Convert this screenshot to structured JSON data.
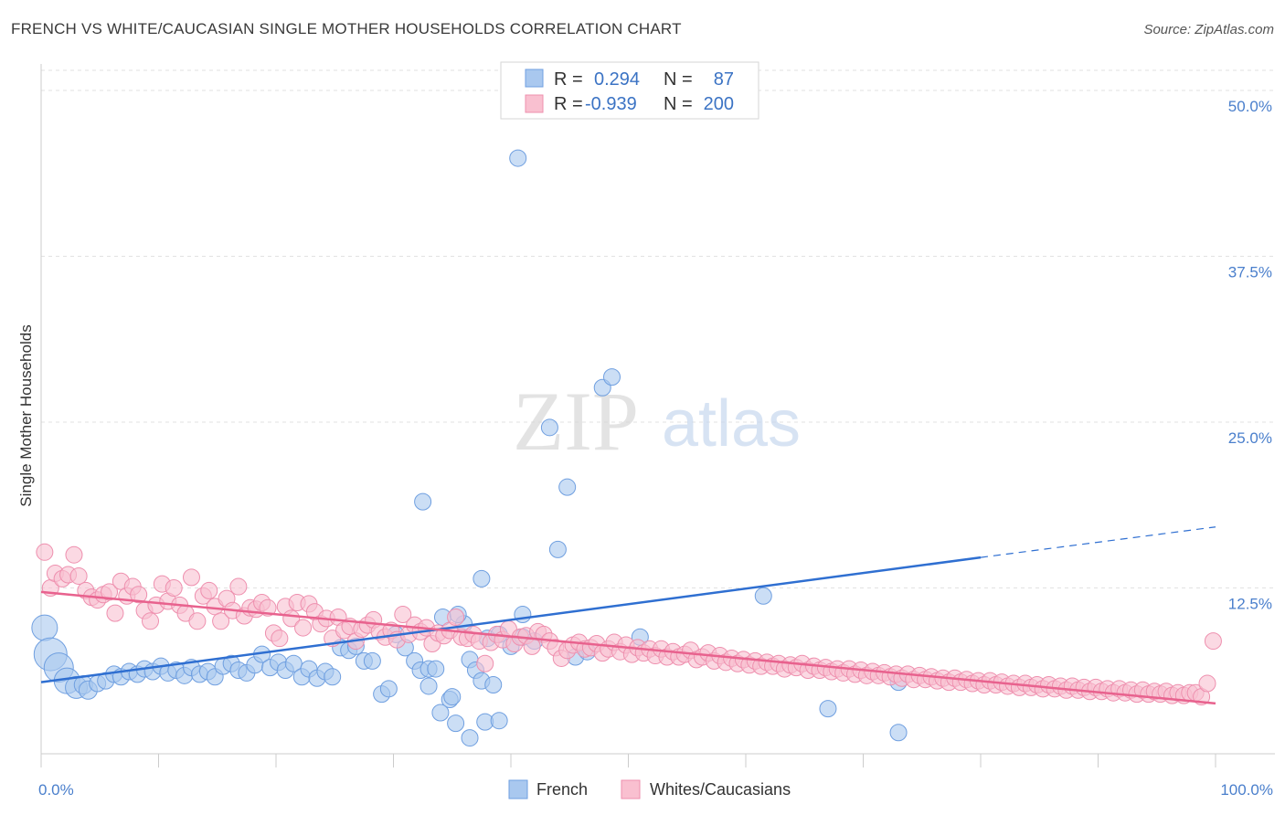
{
  "title": "FRENCH VS WHITE/CAUCASIAN SINGLE MOTHER HOUSEHOLDS CORRELATION CHART",
  "source": "Source: ZipAtlas.com",
  "watermark": {
    "zip": "ZIP",
    "atlas": "atlas"
  },
  "legend": {
    "r_label": "R =",
    "n_label": "N =",
    "rows": [
      {
        "r": "0.294",
        "n": "87",
        "color": "#a9c8ef",
        "stroke": "#6f9fe0"
      },
      {
        "r": "-0.939",
        "n": "200",
        "color": "#f9c0d0",
        "stroke": "#ee8fae"
      }
    ]
  },
  "chart_data": {
    "type": "scatter",
    "title": "FRENCH VS WHITE/CAUCASIAN SINGLE MOTHER HOUSEHOLDS CORRELATION CHART",
    "ylabel": "Single Mother Households",
    "xlabel": "",
    "xlim": [
      0,
      100
    ],
    "ylim": [
      0,
      52
    ],
    "x_tick_labels": [
      "0.0%",
      "100.0%"
    ],
    "y_ticks": [
      12.5,
      25.0,
      37.5,
      50.0
    ],
    "y_tick_labels": [
      "12.5%",
      "25.0%",
      "37.5%",
      "50.0%"
    ],
    "grid": true,
    "legend_placement": "top-center",
    "series": [
      {
        "name": "French",
        "color": "#a9c8ef",
        "stroke": "#6f9fe0",
        "line_color": "#2f6fd1",
        "trend": {
          "x0": 0,
          "y0": 5.4,
          "x1": 80,
          "y1": 14.8,
          "dash_x1": 100,
          "dash_y1": 17.1
        },
        "points": [
          [
            0.3,
            9.5,
            14
          ],
          [
            0.8,
            7.5,
            18
          ],
          [
            1.5,
            6.5,
            16
          ],
          [
            2.2,
            5.5,
            14
          ],
          [
            3.0,
            5.0,
            12
          ],
          [
            3.6,
            5.2,
            10
          ],
          [
            4.0,
            4.8,
            10
          ],
          [
            4.8,
            5.3,
            9
          ],
          [
            5.5,
            5.5,
            9
          ],
          [
            6.2,
            6.0,
            9
          ],
          [
            6.8,
            5.8,
            9
          ],
          [
            7.5,
            6.2,
            9
          ],
          [
            8.2,
            6.0,
            9
          ],
          [
            8.8,
            6.4,
            9
          ],
          [
            9.5,
            6.2,
            9
          ],
          [
            10.2,
            6.6,
            9
          ],
          [
            10.8,
            6.1,
            9
          ],
          [
            11.5,
            6.3,
            9
          ],
          [
            12.2,
            5.9,
            9
          ],
          [
            12.8,
            6.5,
            9
          ],
          [
            13.5,
            6.0,
            9
          ],
          [
            14.2,
            6.2,
            9
          ],
          [
            14.8,
            5.8,
            9
          ],
          [
            15.5,
            6.6,
            9
          ],
          [
            16.2,
            6.8,
            9
          ],
          [
            16.8,
            6.3,
            9
          ],
          [
            17.5,
            6.1,
            9
          ],
          [
            18.2,
            6.7,
            9
          ],
          [
            18.8,
            7.5,
            9
          ],
          [
            19.5,
            6.5,
            9
          ],
          [
            20.2,
            6.9,
            9
          ],
          [
            20.8,
            6.3,
            9
          ],
          [
            21.5,
            6.8,
            9
          ],
          [
            22.2,
            5.8,
            9
          ],
          [
            22.8,
            6.4,
            9
          ],
          [
            23.5,
            5.7,
            9
          ],
          [
            24.2,
            6.2,
            9
          ],
          [
            24.8,
            5.8,
            9
          ],
          [
            25.5,
            8.0,
            9
          ],
          [
            26.2,
            7.8,
            9
          ],
          [
            26.8,
            8.1,
            9
          ],
          [
            27.5,
            7.0,
            9
          ],
          [
            28.2,
            7.0,
            9
          ],
          [
            29.0,
            4.5,
            9
          ],
          [
            29.6,
            4.9,
            9
          ],
          [
            30.2,
            9.0,
            9
          ],
          [
            31.0,
            8.0,
            9
          ],
          [
            31.8,
            7.0,
            9
          ],
          [
            32.3,
            6.3,
            9
          ],
          [
            33.0,
            6.4,
            9
          ],
          [
            33.6,
            6.4,
            9
          ],
          [
            34.2,
            10.3,
            9
          ],
          [
            34.8,
            4.1,
            9
          ],
          [
            35.3,
            2.3,
            9
          ],
          [
            36.0,
            9.8,
            9
          ],
          [
            36.5,
            7.1,
            9
          ],
          [
            37.0,
            6.3,
            9
          ],
          [
            37.5,
            13.2,
            9
          ],
          [
            38.0,
            8.7,
            9
          ],
          [
            39.0,
            9.0,
            9
          ],
          [
            40.0,
            8.1,
            9
          ],
          [
            41.0,
            8.8,
            9
          ],
          [
            42.0,
            8.5,
            9
          ],
          [
            32.5,
            19.0,
            9
          ],
          [
            33.0,
            5.1,
            9
          ],
          [
            34.0,
            3.1,
            9
          ],
          [
            35.0,
            4.3,
            9
          ],
          [
            36.5,
            1.2,
            9
          ],
          [
            37.8,
            2.4,
            9
          ],
          [
            35.5,
            10.5,
            9
          ],
          [
            37.5,
            5.5,
            9
          ],
          [
            38.5,
            5.2,
            9
          ],
          [
            39.0,
            2.5,
            9
          ],
          [
            41.0,
            10.5,
            9
          ],
          [
            43.3,
            24.6,
            9
          ],
          [
            44.0,
            15.4,
            9
          ],
          [
            44.8,
            20.1,
            9
          ],
          [
            40.6,
            44.9,
            9
          ],
          [
            45.5,
            7.3,
            9
          ],
          [
            46.5,
            7.7,
            9
          ],
          [
            47.8,
            27.6,
            9
          ],
          [
            48.6,
            28.4,
            9
          ],
          [
            51.0,
            8.8,
            9
          ],
          [
            61.5,
            11.9,
            9
          ],
          [
            67.0,
            3.4,
            9
          ],
          [
            73.0,
            5.4,
            9
          ],
          [
            73.0,
            1.6,
            9
          ]
        ]
      },
      {
        "name": "Whites/Caucasians",
        "color": "#f9c0d0",
        "stroke": "#ee8fae",
        "line_color": "#e8628e",
        "trend": {
          "x0": 0,
          "y0": 12.2,
          "x1": 100,
          "y1": 3.8
        },
        "points": [
          [
            0.3,
            15.2
          ],
          [
            0.8,
            12.5
          ],
          [
            1.2,
            13.6
          ],
          [
            1.8,
            13.2
          ],
          [
            2.3,
            13.5
          ],
          [
            2.8,
            15.0
          ],
          [
            3.2,
            13.4
          ],
          [
            3.8,
            12.3
          ],
          [
            4.3,
            11.8
          ],
          [
            4.8,
            11.6
          ],
          [
            5.3,
            12.0
          ],
          [
            5.8,
            12.2
          ],
          [
            6.3,
            10.6
          ],
          [
            6.8,
            13.0
          ],
          [
            7.3,
            11.9
          ],
          [
            7.8,
            12.6
          ],
          [
            8.3,
            12.0
          ],
          [
            8.8,
            10.8
          ],
          [
            9.3,
            10.0
          ],
          [
            9.8,
            11.2
          ],
          [
            10.3,
            12.8
          ],
          [
            10.8,
            11.5
          ],
          [
            11.3,
            12.5
          ],
          [
            11.8,
            11.2
          ],
          [
            12.3,
            10.6
          ],
          [
            12.8,
            13.3
          ],
          [
            13.3,
            10.0
          ],
          [
            13.8,
            11.9
          ],
          [
            14.3,
            12.3
          ],
          [
            14.8,
            11.1
          ],
          [
            15.3,
            10.0
          ],
          [
            15.8,
            11.7
          ],
          [
            16.3,
            10.8
          ],
          [
            16.8,
            12.6
          ],
          [
            17.3,
            10.4
          ],
          [
            17.8,
            11.0
          ],
          [
            18.3,
            10.9
          ],
          [
            18.8,
            11.4
          ],
          [
            19.3,
            11.0
          ],
          [
            19.8,
            9.1
          ],
          [
            20.3,
            8.7
          ],
          [
            20.8,
            11.1
          ],
          [
            21.3,
            10.2
          ],
          [
            21.8,
            11.4
          ],
          [
            22.3,
            9.5
          ],
          [
            22.8,
            11.3
          ],
          [
            23.3,
            10.7
          ],
          [
            23.8,
            9.8
          ],
          [
            24.3,
            10.2
          ],
          [
            24.8,
            8.7
          ],
          [
            25.3,
            10.3
          ],
          [
            25.8,
            9.3
          ],
          [
            26.3,
            9.6
          ],
          [
            26.8,
            8.5
          ],
          [
            27.3,
            9.4
          ],
          [
            27.8,
            9.7
          ],
          [
            28.3,
            10.1
          ],
          [
            28.8,
            9.2
          ],
          [
            29.3,
            8.8
          ],
          [
            29.8,
            9.3
          ],
          [
            30.3,
            8.6
          ],
          [
            30.8,
            10.5
          ],
          [
            31.3,
            9.0
          ],
          [
            31.8,
            9.7
          ],
          [
            32.3,
            9.2
          ],
          [
            32.8,
            9.5
          ],
          [
            33.3,
            8.3
          ],
          [
            33.8,
            9.1
          ],
          [
            34.3,
            8.9
          ],
          [
            34.8,
            9.3
          ],
          [
            35.3,
            10.3
          ],
          [
            35.8,
            8.8
          ],
          [
            36.3,
            8.7
          ],
          [
            36.8,
            9.0
          ],
          [
            37.3,
            8.5
          ],
          [
            37.8,
            6.8
          ],
          [
            38.3,
            8.4
          ],
          [
            38.8,
            9.0
          ],
          [
            39.3,
            8.6
          ],
          [
            39.8,
            9.4
          ],
          [
            40.3,
            8.3
          ],
          [
            40.8,
            8.8
          ],
          [
            41.3,
            8.9
          ],
          [
            41.8,
            8.1
          ],
          [
            42.3,
            9.2
          ],
          [
            42.8,
            9.0
          ],
          [
            43.3,
            8.5
          ],
          [
            43.8,
            8.0
          ],
          [
            44.3,
            7.2
          ],
          [
            44.8,
            7.8
          ],
          [
            45.3,
            8.2
          ],
          [
            45.8,
            8.4
          ],
          [
            46.3,
            7.9
          ],
          [
            46.8,
            8.0
          ],
          [
            47.3,
            8.3
          ],
          [
            47.8,
            7.6
          ],
          [
            48.3,
            7.9
          ],
          [
            48.8,
            8.4
          ],
          [
            49.3,
            7.7
          ],
          [
            49.8,
            8.2
          ],
          [
            50.3,
            7.5
          ],
          [
            50.8,
            8.0
          ],
          [
            51.3,
            7.6
          ],
          [
            51.8,
            7.9
          ],
          [
            52.3,
            7.4
          ],
          [
            52.8,
            7.9
          ],
          [
            53.3,
            7.3
          ],
          [
            53.8,
            7.7
          ],
          [
            54.3,
            7.3
          ],
          [
            54.8,
            7.5
          ],
          [
            55.3,
            7.8
          ],
          [
            55.8,
            7.1
          ],
          [
            56.3,
            7.3
          ],
          [
            56.8,
            7.6
          ],
          [
            57.3,
            7.0
          ],
          [
            57.8,
            7.4
          ],
          [
            58.3,
            6.9
          ],
          [
            58.8,
            7.2
          ],
          [
            59.3,
            6.8
          ],
          [
            59.8,
            7.1
          ],
          [
            60.3,
            6.7
          ],
          [
            60.8,
            7.0
          ],
          [
            61.3,
            6.6
          ],
          [
            61.8,
            6.9
          ],
          [
            62.3,
            6.6
          ],
          [
            62.8,
            6.8
          ],
          [
            63.3,
            6.4
          ],
          [
            63.8,
            6.7
          ],
          [
            64.3,
            6.5
          ],
          [
            64.8,
            6.8
          ],
          [
            65.3,
            6.3
          ],
          [
            65.8,
            6.6
          ],
          [
            66.3,
            6.3
          ],
          [
            66.8,
            6.5
          ],
          [
            67.3,
            6.2
          ],
          [
            67.8,
            6.4
          ],
          [
            68.3,
            6.1
          ],
          [
            68.8,
            6.4
          ],
          [
            69.3,
            6.0
          ],
          [
            69.8,
            6.3
          ],
          [
            70.3,
            5.9
          ],
          [
            70.8,
            6.2
          ],
          [
            71.3,
            5.9
          ],
          [
            71.8,
            6.1
          ],
          [
            72.3,
            5.8
          ],
          [
            72.8,
            6.0
          ],
          [
            73.3,
            5.7
          ],
          [
            73.8,
            6.0
          ],
          [
            74.3,
            5.6
          ],
          [
            74.8,
            5.9
          ],
          [
            75.3,
            5.6
          ],
          [
            75.8,
            5.8
          ],
          [
            76.3,
            5.5
          ],
          [
            76.8,
            5.7
          ],
          [
            77.3,
            5.4
          ],
          [
            77.8,
            5.7
          ],
          [
            78.3,
            5.4
          ],
          [
            78.8,
            5.6
          ],
          [
            79.3,
            5.3
          ],
          [
            79.8,
            5.5
          ],
          [
            80.3,
            5.2
          ],
          [
            80.8,
            5.5
          ],
          [
            81.3,
            5.2
          ],
          [
            81.8,
            5.4
          ],
          [
            82.3,
            5.1
          ],
          [
            82.8,
            5.3
          ],
          [
            83.3,
            5.0
          ],
          [
            83.8,
            5.3
          ],
          [
            84.3,
            5.0
          ],
          [
            84.8,
            5.2
          ],
          [
            85.3,
            4.9
          ],
          [
            85.8,
            5.2
          ],
          [
            86.3,
            4.9
          ],
          [
            86.8,
            5.1
          ],
          [
            87.3,
            4.8
          ],
          [
            87.8,
            5.1
          ],
          [
            88.3,
            4.8
          ],
          [
            88.8,
            5.0
          ],
          [
            89.3,
            4.7
          ],
          [
            89.8,
            5.0
          ],
          [
            90.3,
            4.7
          ],
          [
            90.8,
            4.9
          ],
          [
            91.3,
            4.6
          ],
          [
            91.8,
            4.9
          ],
          [
            92.3,
            4.6
          ],
          [
            92.8,
            4.8
          ],
          [
            93.3,
            4.5
          ],
          [
            93.8,
            4.8
          ],
          [
            94.3,
            4.5
          ],
          [
            94.8,
            4.7
          ],
          [
            95.3,
            4.5
          ],
          [
            95.8,
            4.7
          ],
          [
            96.3,
            4.4
          ],
          [
            96.8,
            4.6
          ],
          [
            97.3,
            4.4
          ],
          [
            97.8,
            4.6
          ],
          [
            98.3,
            4.6
          ],
          [
            98.8,
            4.3
          ],
          [
            99.3,
            5.3
          ],
          [
            99.8,
            8.5
          ]
        ]
      }
    ]
  }
}
